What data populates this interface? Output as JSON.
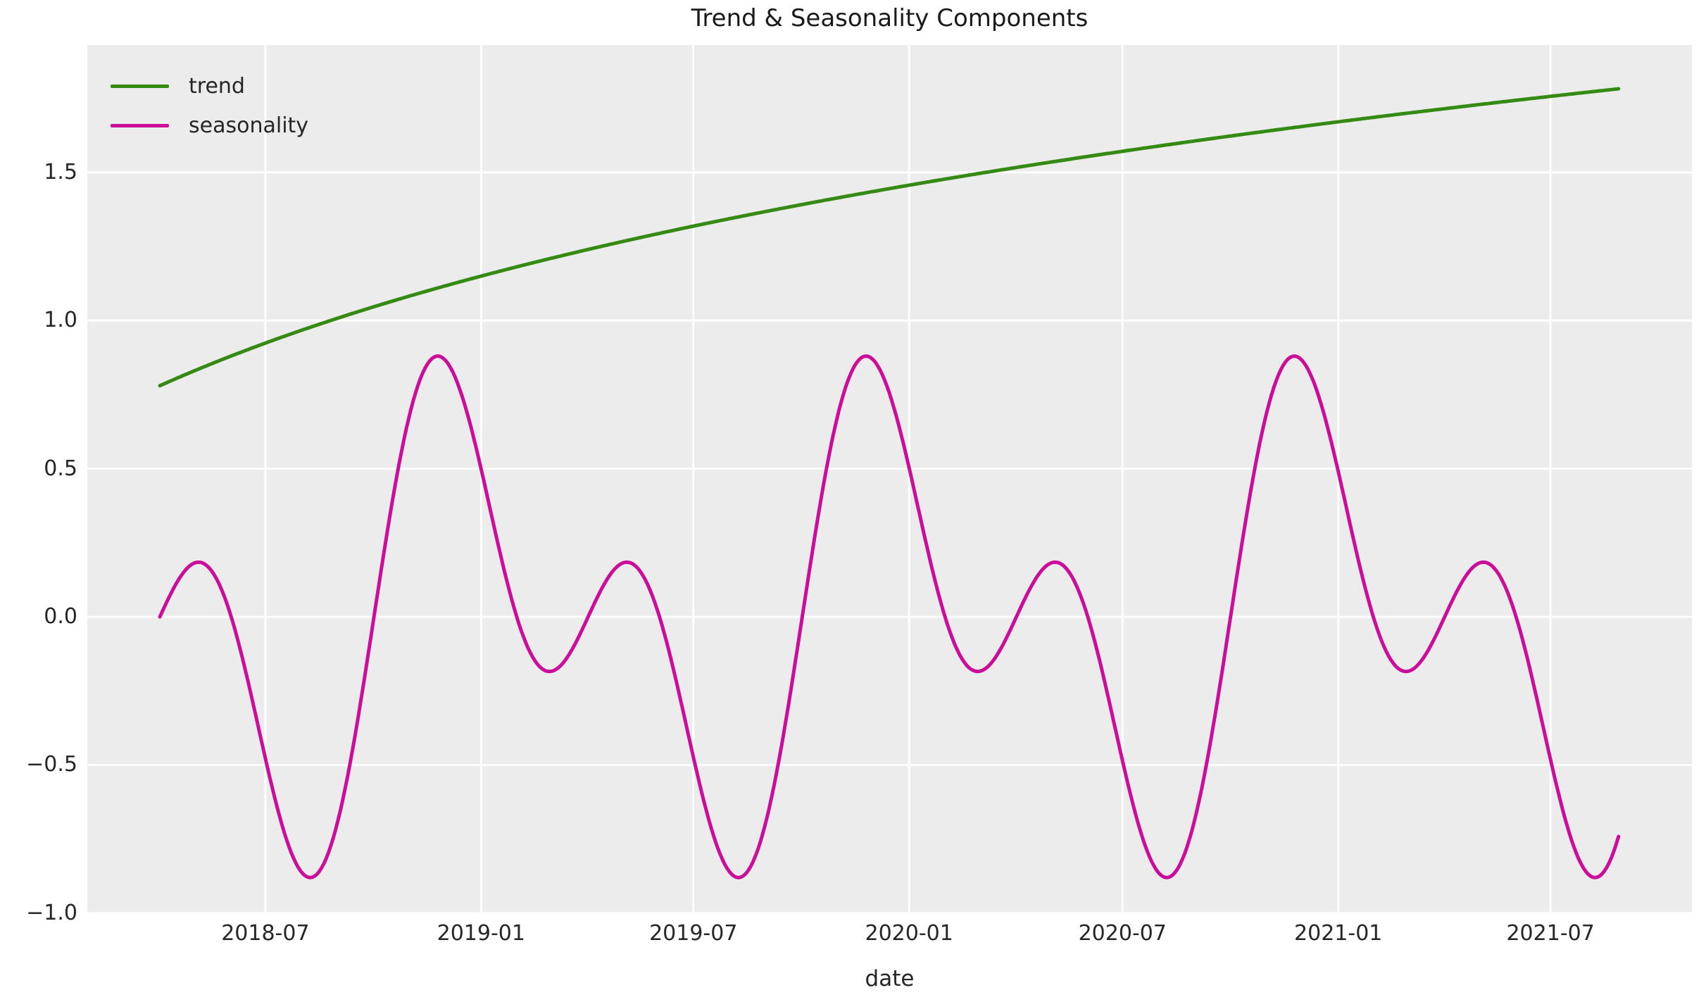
{
  "figure": {
    "background": "#ffffff",
    "plot_background": "#ececec",
    "grid_color": "#ffffff",
    "text_color": "#262626"
  },
  "chart_data": {
    "type": "line",
    "title": "Trend & Seasonality Components",
    "xlabel": "date",
    "ylabel": "",
    "grid": true,
    "legend_position": "upper-left",
    "legend_frame": false,
    "x_axis": {
      "kind": "date",
      "start_date": "2018-04",
      "end_date": "2021-08",
      "span_days": 1245,
      "tick_labels": [
        "2018-07",
        "2019-01",
        "2019-07",
        "2020-01",
        "2020-07",
        "2021-01",
        "2021-07"
      ],
      "tick_days_from_start": [
        90,
        274,
        455,
        639,
        821,
        1005,
        1186
      ]
    },
    "y_axis": {
      "tick_labels": [
        "1.5",
        "1.0",
        "0.5",
        "0.0",
        "−0.5",
        "−1.0"
      ],
      "tick_values": [
        1.5,
        1.0,
        0.5,
        0.0,
        -0.5,
        -1.0
      ],
      "ylim": [
        -1.01,
        1.93
      ]
    },
    "series": [
      {
        "name": "trend",
        "color": "#348a12",
        "line_width": 5,
        "model": {
          "type": "log",
          "formula": "0.709*ln(t_days+400)-3.468"
        },
        "params": {
          "a": 0.709,
          "c": 400,
          "d": -3.468
        },
        "start_value": 0.78,
        "end_value": 1.78,
        "sampled_points_day_value": [
          [
            0,
            0.78
          ],
          [
            30,
            0.83
          ],
          [
            60,
            0.88
          ],
          [
            90,
            0.92
          ],
          [
            120,
            0.97
          ],
          [
            150,
            1.01
          ],
          [
            180,
            1.04
          ],
          [
            210,
            1.08
          ],
          [
            240,
            1.11
          ],
          [
            270,
            1.15
          ],
          [
            300,
            1.18
          ],
          [
            330,
            1.21
          ],
          [
            360,
            1.24
          ],
          [
            390,
            1.26
          ],
          [
            420,
            1.29
          ],
          [
            450,
            1.31
          ],
          [
            480,
            1.34
          ],
          [
            510,
            1.36
          ],
          [
            540,
            1.39
          ],
          [
            570,
            1.41
          ],
          [
            600,
            1.43
          ],
          [
            630,
            1.45
          ],
          [
            660,
            1.47
          ],
          [
            690,
            1.49
          ],
          [
            720,
            1.51
          ],
          [
            750,
            1.53
          ],
          [
            780,
            1.55
          ],
          [
            810,
            1.57
          ],
          [
            840,
            1.58
          ],
          [
            870,
            1.6
          ],
          [
            900,
            1.62
          ],
          [
            930,
            1.63
          ],
          [
            960,
            1.65
          ],
          [
            990,
            1.66
          ],
          [
            1020,
            1.68
          ],
          [
            1050,
            1.69
          ],
          [
            1080,
            1.71
          ],
          [
            1110,
            1.72
          ],
          [
            1140,
            1.74
          ],
          [
            1170,
            1.75
          ],
          [
            1200,
            1.76
          ],
          [
            1230,
            1.78
          ],
          [
            1245,
            1.78
          ]
        ]
      },
      {
        "name": "seasonality",
        "color": "#ca0e9a",
        "line_width": 5,
        "model": {
          "type": "harmonics",
          "formula": "-0.5*sin(2*pi*t/365.25)+0.5*sin(4*pi*t/365.25)"
        },
        "params": {
          "a1": -0.5,
          "period1": 365.25,
          "a2": 0.5,
          "period2": 182.625
        },
        "annual_profile_day_value": [
          [
            0,
            0.0
          ],
          [
            30,
            0.18
          ],
          [
            60,
            0.01
          ],
          [
            90,
            -0.48
          ],
          [
            120,
            -0.86
          ],
          [
            150,
            -0.72
          ],
          [
            180,
            -0.07
          ],
          [
            210,
            0.63
          ],
          [
            240,
            0.88
          ],
          [
            270,
            0.56
          ],
          [
            300,
            0.06
          ],
          [
            330,
            -0.18
          ],
          [
            365,
            0.0
          ]
        ],
        "major_peak": 0.88,
        "major_trough": -0.88,
        "minor_peak": 0.18,
        "minor_trough": -0.18,
        "end_value": -0.71
      }
    ]
  }
}
